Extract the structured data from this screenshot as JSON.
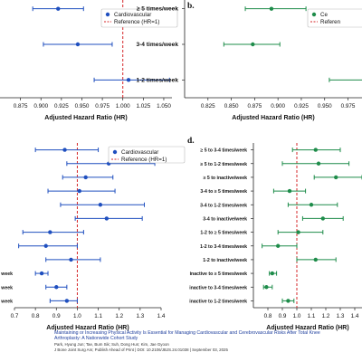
{
  "panels": [
    {
      "id": "a",
      "panel_label": "",
      "xlabel": "Adjusted Hazard Ratio (HR)",
      "series_name": "Cardiovascular",
      "reference_label": "Reference (HR=1)",
      "color": "#1f4fbf",
      "xlim": [
        0.85,
        1.06
      ],
      "xticks": [
        "0.875",
        "0.900",
        "0.925",
        "0.950",
        "0.975",
        "1.000",
        "1.025",
        "1.050"
      ],
      "xtick_values": [
        0.875,
        0.9,
        0.925,
        0.95,
        0.975,
        1.0,
        1.025,
        1.05
      ],
      "rows": [
        {
          "label": "",
          "hr": 0.921,
          "lo": 0.89,
          "hi": 0.952
        },
        {
          "label": "",
          "hr": 0.945,
          "lo": 0.903,
          "hi": 0.987
        },
        {
          "label": "",
          "hr": 1.007,
          "lo": 0.965,
          "hi": 1.057
        }
      ]
    },
    {
      "id": "b",
      "panel_label": "b.",
      "xlabel": "Adjusted Hazard Ratio (HR)",
      "series_name": "Ce",
      "reference_label": "Referen",
      "color": "#1e8c4a",
      "xlim": [
        0.8,
        0.99
      ],
      "xticks": [
        "0.825",
        "0.850",
        "0.875",
        "0.900",
        "0.925",
        "0.950",
        "0.975"
      ],
      "xtick_values": [
        0.825,
        0.85,
        0.875,
        0.9,
        0.925,
        0.95,
        0.975
      ],
      "rows": [
        {
          "label": "≥ 5 times/week",
          "hr": 0.893,
          "lo": 0.865,
          "hi": 0.93
        },
        {
          "label": "3-4 times/week",
          "hr": 0.873,
          "lo": 0.842,
          "hi": 0.902
        },
        {
          "label": "1-2 times/week",
          "hr": 0.995,
          "lo": 0.955,
          "hi": 1.04
        }
      ]
    },
    {
      "id": "c",
      "panel_label": "",
      "xlabel": "Adjusted Hazard Ratio (HR)",
      "series_name": "Cardiovascular",
      "reference_label": "Reference (HR=1)",
      "color": "#1f4fbf",
      "xlim": [
        0.7,
        1.4
      ],
      "xticks": [
        "0.7",
        "0.8",
        "0.9",
        "1.0",
        "1.1",
        "1.2",
        "1.3",
        "1.4"
      ],
      "xtick_values": [
        0.7,
        0.8,
        0.9,
        1.0,
        1.1,
        1.2,
        1.3,
        1.4
      ],
      "rows": [
        {
          "label": "",
          "hr": 0.94,
          "lo": 0.8,
          "hi": 1.1
        },
        {
          "label": "",
          "hr": 1.15,
          "lo": 0.95,
          "hi": 1.37
        },
        {
          "label": "",
          "hr": 1.04,
          "lo": 0.93,
          "hi": 1.17
        },
        {
          "label": "",
          "hr": 1.01,
          "lo": 0.86,
          "hi": 1.18
        },
        {
          "label": "",
          "hr": 1.11,
          "lo": 0.92,
          "hi": 1.32
        },
        {
          "label": "",
          "hr": 1.14,
          "lo": 0.99,
          "hi": 1.31
        },
        {
          "label": "",
          "hr": 0.87,
          "lo": 0.74,
          "hi": 1.03
        },
        {
          "label": "",
          "hr": 0.85,
          "lo": 0.72,
          "hi": 1.0
        },
        {
          "label": "",
          "hr": 0.97,
          "lo": 0.85,
          "hi": 1.11
        },
        {
          "label": "week",
          "hr": 0.83,
          "lo": 0.8,
          "hi": 0.86
        },
        {
          "label": "week",
          "hr": 0.9,
          "lo": 0.85,
          "hi": 0.95
        },
        {
          "label": "week",
          "hr": 0.95,
          "lo": 0.87,
          "hi": 1.0
        }
      ]
    },
    {
      "id": "d",
      "panel_label": "d.",
      "xlabel": "Adjusted Hazard Ratio (HR)",
      "series_name": "",
      "reference_label": "",
      "color": "#1e8c4a",
      "xlim": [
        0.7,
        1.45
      ],
      "xticks": [
        "0.8",
        "0.9",
        "1.0",
        "1.1",
        "1.2",
        "1.3",
        "1.4"
      ],
      "xtick_values": [
        0.8,
        0.9,
        1.0,
        1.1,
        1.2,
        1.3,
        1.4
      ],
      "rows": [
        {
          "label": "≥ 5 to 3-4 times/week",
          "hr": 1.13,
          "lo": 0.97,
          "hi": 1.3
        },
        {
          "label": "≥ 5 to 1-2 times/week",
          "hr": 1.15,
          "lo": 0.9,
          "hi": 1.36
        },
        {
          "label": "≥ 5 to inactive/week",
          "hr": 1.27,
          "lo": 1.12,
          "hi": 1.45
        },
        {
          "label": "3-4 to ≥ 5 times/week",
          "hr": 0.95,
          "lo": 0.84,
          "hi": 1.06
        },
        {
          "label": "3-4 to 1-2 times/week",
          "hr": 1.1,
          "lo": 0.94,
          "hi": 1.28
        },
        {
          "label": "3-4 to inactive/week",
          "hr": 1.18,
          "lo": 1.04,
          "hi": 1.32
        },
        {
          "label": "1-2 to ≥ 5 times/week",
          "hr": 1.01,
          "lo": 0.87,
          "hi": 1.18
        },
        {
          "label": "1-2 to 3-4 times/week",
          "hr": 0.87,
          "lo": 0.76,
          "hi": 1.0
        },
        {
          "label": "1-2 to inactive/week",
          "hr": 1.13,
          "lo": 1.0,
          "hi": 1.27
        },
        {
          "label": "inactive to ≥ 5 times/week",
          "hr": 0.83,
          "lo": 0.81,
          "hi": 0.86
        },
        {
          "label": "inactive to 3-4 times/week",
          "hr": 0.79,
          "lo": 0.77,
          "hi": 0.83
        },
        {
          "label": "inactive to 1-2 times/week",
          "hr": 0.94,
          "lo": 0.9,
          "hi": 0.98
        }
      ]
    }
  ],
  "footer": {
    "title": "Maintaining or Increasing Physical Activity Is Essential for Managing Cardiovascular and Cerebrovascular Risks After Total Knee Arthroplasty: A Nationwide Cohort Study",
    "authors": "Park, Hyung Jun; Tae, Bum Sik; Suh, Dong Hun; Kim, Jae Gyoon",
    "journal": "J Bone Joint Surg Am; Publish Ahead of Print | DOI: 10.2106/JBJS.24.01038 | September 03, 2025"
  },
  "chart_data": [
    {
      "type": "scatter",
      "panel": "a",
      "xlabel": "Adjusted Hazard Ratio (HR)",
      "xlim": [
        0.85,
        1.06
      ],
      "series": [
        {
          "name": "Cardiovascular",
          "x": [
            0.921,
            0.945,
            1.007
          ],
          "ci_low": [
            0.89,
            0.903,
            0.965
          ],
          "ci_high": [
            0.952,
            0.987,
            1.057
          ]
        }
      ],
      "reference_line": 1.0
    },
    {
      "type": "scatter",
      "panel": "b",
      "categories": [
        "≥ 5 times/week",
        "3-4 times/week",
        "1-2 times/week"
      ],
      "xlabel": "Adjusted Hazard Ratio (HR)",
      "series": [
        {
          "x": [
            0.893,
            0.873,
            0.995
          ],
          "ci_low": [
            0.865,
            0.842,
            0.955
          ],
          "ci_high": [
            0.93,
            0.902,
            1.04
          ]
        }
      ],
      "reference_line": 1.0
    },
    {
      "type": "scatter",
      "panel": "c",
      "xlabel": "Adjusted Hazard Ratio (HR)",
      "xlim": [
        0.7,
        1.4
      ],
      "series": [
        {
          "name": "Cardiovascular",
          "x": [
            0.94,
            1.15,
            1.04,
            1.01,
            1.11,
            1.14,
            0.87,
            0.85,
            0.97,
            0.83,
            0.9,
            0.95
          ]
        }
      ],
      "reference_line": 1.0
    },
    {
      "type": "scatter",
      "panel": "d",
      "categories": [
        "≥ 5 to 3-4 times/week",
        "≥ 5 to 1-2 times/week",
        "≥ 5 to inactive/week",
        "3-4 to ≥ 5 times/week",
        "3-4 to 1-2 times/week",
        "3-4 to inactive/week",
        "1-2 to ≥ 5 times/week",
        "1-2 to 3-4 times/week",
        "1-2 to inactive/week",
        "inactive to ≥ 5 times/week",
        "inactive to 3-4 times/week",
        "inactive to 1-2 times/week"
      ],
      "xlabel": "Adjusted Hazard Ratio (HR)",
      "series": [
        {
          "x": [
            1.13,
            1.15,
            1.27,
            0.95,
            1.1,
            1.18,
            1.01,
            0.87,
            1.13,
            0.83,
            0.79,
            0.94
          ]
        }
      ],
      "reference_line": 1.0
    }
  ]
}
